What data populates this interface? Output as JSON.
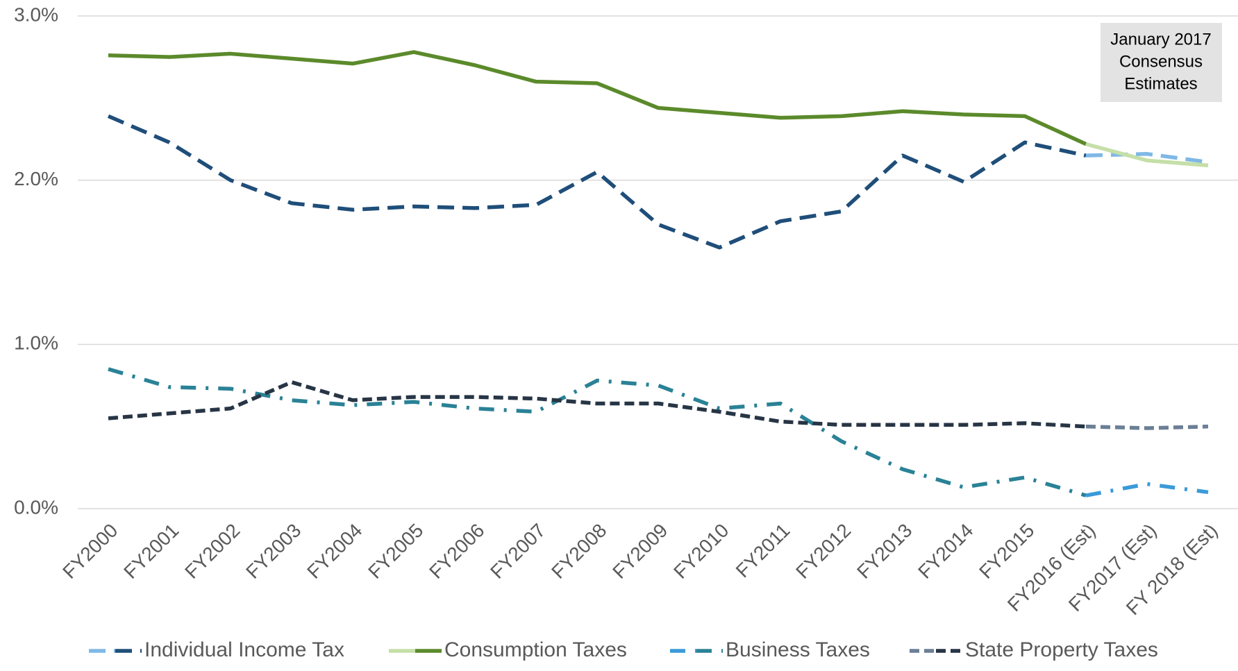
{
  "chart_data": {
    "type": "line",
    "annotation": [
      "January 2017",
      "Consensus",
      "Estimates"
    ],
    "categories": [
      "FY2000",
      "FY2001",
      "FY2002",
      "FY2003",
      "FY2004",
      "FY2005",
      "FY2006",
      "FY2007",
      "FY2008",
      "FY2009",
      "FY2010",
      "FY2011",
      "FY2012",
      "FY2013",
      "FY2014",
      "FY2015",
      "FY2016 (Est)",
      "FY2017 (Est)",
      "FY 2018 (Est)"
    ],
    "ylim": [
      0,
      3
    ],
    "yticks": [
      {
        "value": 0,
        "label": "0.0%"
      },
      {
        "value": 1,
        "label": "1.0%"
      },
      {
        "value": 2,
        "label": "2.0%"
      },
      {
        "value": 3,
        "label": "3.0%"
      }
    ],
    "grid": true,
    "legend": "bottom",
    "series": [
      {
        "name": "Individual Income Tax",
        "color": "#1f4e79",
        "estimate_color": "#7fb8e6",
        "dash": "24 12",
        "values": [
          2.39,
          2.23,
          2.0,
          1.86,
          1.82,
          1.84,
          1.83,
          1.85,
          2.05,
          1.73,
          1.59,
          1.75,
          1.81,
          2.15,
          1.99,
          2.23,
          2.15,
          2.16,
          2.11
        ]
      },
      {
        "name": "Consumption Taxes",
        "color": "#5b8a2b",
        "estimate_color": "#c5dfa8",
        "dash": "none",
        "values": [
          2.76,
          2.75,
          2.77,
          2.74,
          2.71,
          2.78,
          2.7,
          2.6,
          2.59,
          2.44,
          2.41,
          2.38,
          2.39,
          2.42,
          2.4,
          2.39,
          2.22,
          2.12,
          2.09
        ]
      },
      {
        "name": "Business Taxes",
        "color": "#2a8296",
        "estimate_color": "#3a9ad9",
        "dash": "22 14 4 14",
        "values": [
          0.85,
          0.74,
          0.73,
          0.66,
          0.63,
          0.65,
          0.61,
          0.59,
          0.78,
          0.75,
          0.61,
          0.64,
          0.41,
          0.24,
          0.13,
          0.19,
          0.08,
          0.15,
          0.1
        ]
      },
      {
        "name": "State Property Taxes",
        "color": "#273545",
        "estimate_color": "#6b7f96",
        "dash": "14 7",
        "values": [
          0.55,
          0.58,
          0.61,
          0.77,
          0.66,
          0.68,
          0.68,
          0.67,
          0.64,
          0.64,
          0.59,
          0.53,
          0.51,
          0.51,
          0.51,
          0.52,
          0.5,
          0.49,
          0.5
        ]
      }
    ],
    "estimate_from": "FY2016 (Est)"
  }
}
